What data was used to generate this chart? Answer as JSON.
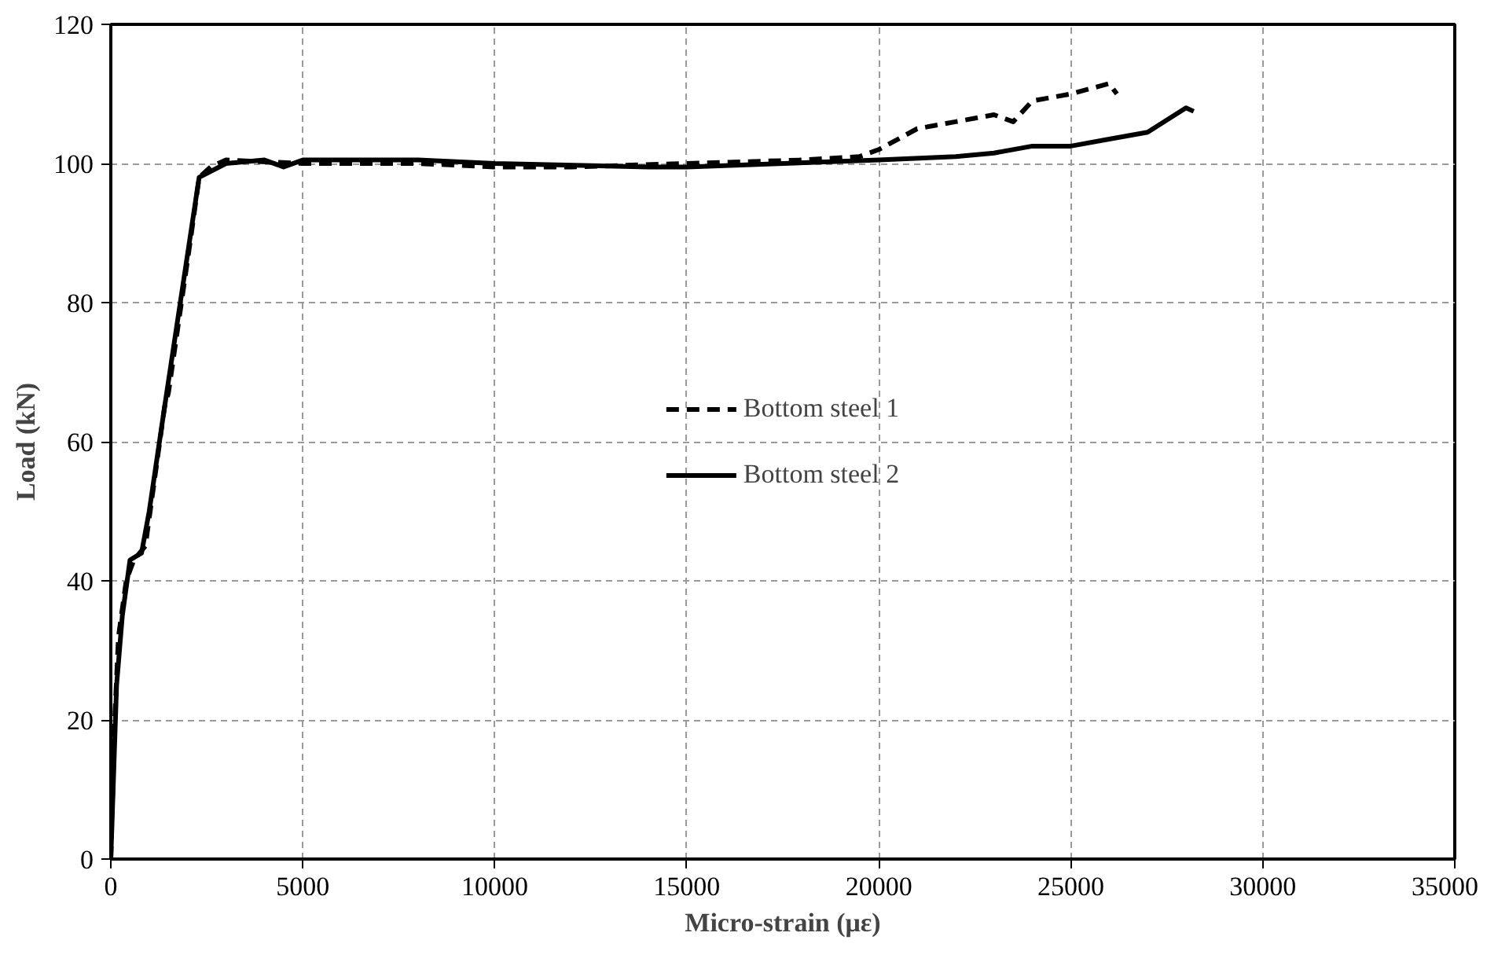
{
  "chart_data": {
    "type": "line",
    "xlabel": "Micro-strain (με)",
    "ylabel": "Load (kN)",
    "xlim": [
      0,
      35000
    ],
    "ylim": [
      0,
      120
    ],
    "xticks": [
      0,
      5000,
      10000,
      15000,
      20000,
      25000,
      30000,
      35000
    ],
    "yticks": [
      0,
      20,
      40,
      60,
      80,
      100,
      120
    ],
    "grid": true,
    "legend": "center",
    "marker": "none",
    "series": [
      {
        "name": "Bottom steel 1",
        "color": "#000000",
        "line_style": "dashed",
        "x": [
          0,
          100,
          200,
          400,
          600,
          900,
          1400,
          1500,
          2100,
          2300,
          2600,
          3000,
          5000,
          8000,
          10000,
          12000,
          15000,
          18000,
          19500,
          20000,
          21000,
          22000,
          23000,
          23500,
          24000,
          25000,
          26000,
          26200
        ],
        "values": [
          0,
          20,
          32,
          40,
          43,
          45,
          65,
          67,
          90,
          98,
          99.5,
          100.5,
          100,
          100,
          99.5,
          99.5,
          100,
          100.5,
          101,
          102,
          105,
          106,
          107,
          106,
          109,
          110,
          111.5,
          110
        ]
      },
      {
        "name": "Bottom steel 2",
        "color": "#000000",
        "line_style": "solid",
        "x": [
          0,
          150,
          300,
          500,
          800,
          1000,
          1400,
          2300,
          3000,
          4000,
          4500,
          5000,
          8000,
          10000,
          14000,
          15000,
          20000,
          22000,
          23000,
          24000,
          25000,
          26000,
          27000,
          28000,
          28200
        ],
        "values": [
          0,
          25,
          35,
          43,
          44,
          50,
          65,
          98,
          100,
          100.5,
          99.5,
          100.5,
          100.5,
          100,
          99.5,
          99.5,
          100.5,
          101,
          101.5,
          102.5,
          102.5,
          103.5,
          104.5,
          108,
          107.5
        ]
      }
    ]
  }
}
